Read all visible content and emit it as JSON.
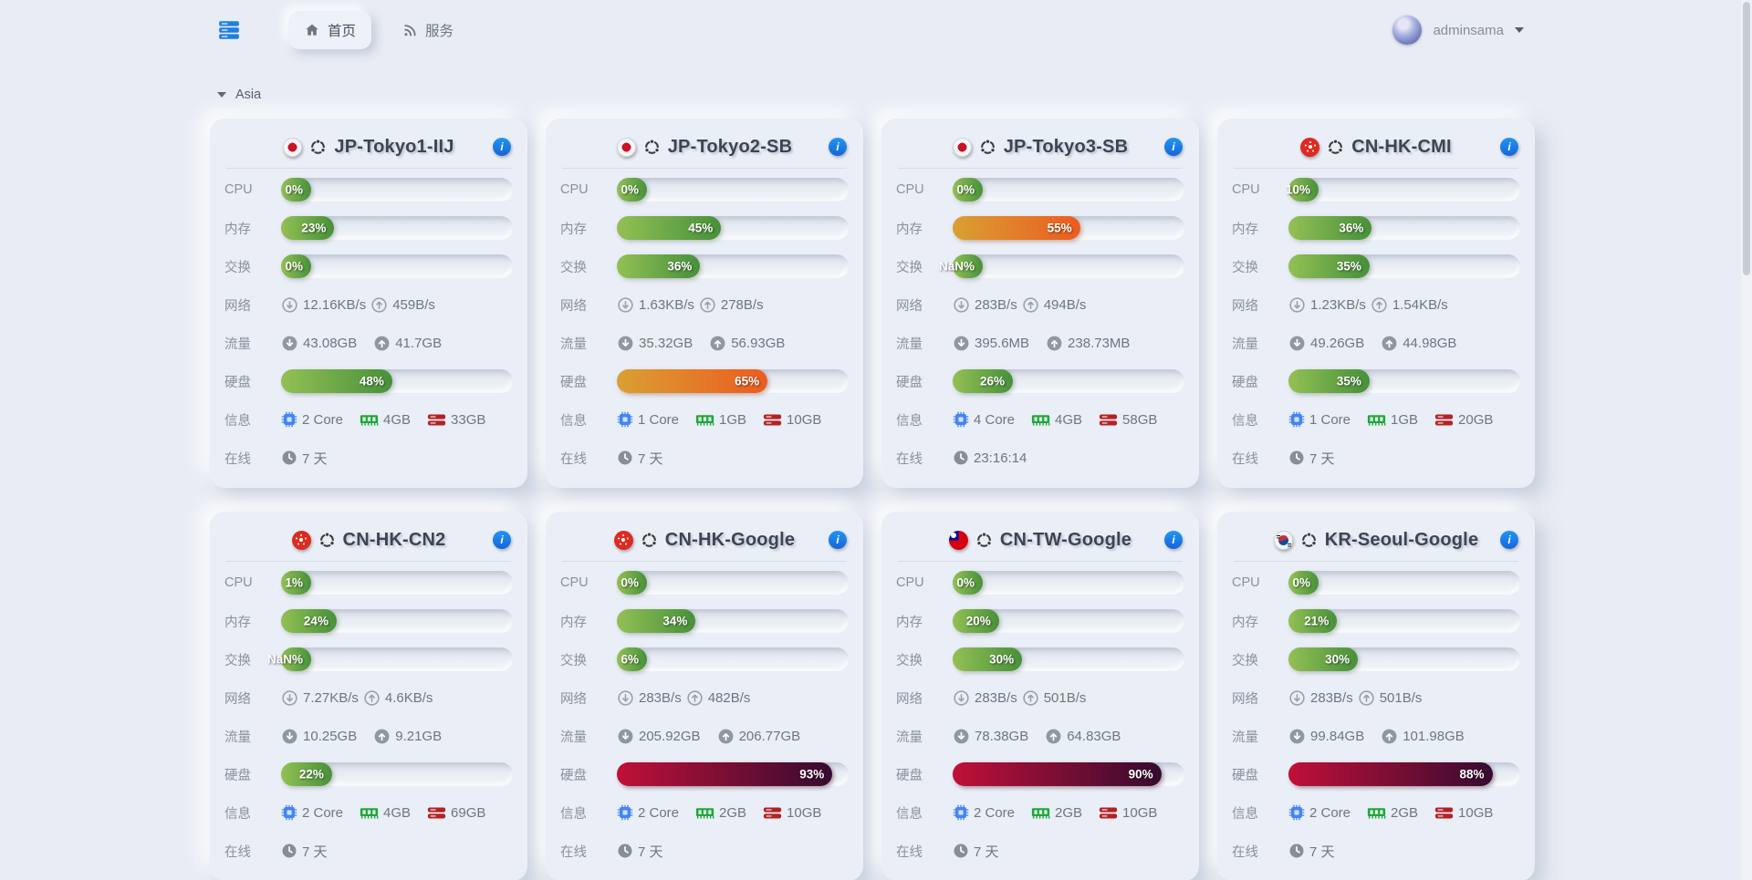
{
  "topbar": {
    "logo_icon": "server-stack-icon",
    "tabs": [
      {
        "label": "首页",
        "icon": "home-icon",
        "active": true
      },
      {
        "label": "服务",
        "icon": "rss-icon",
        "active": false
      }
    ],
    "user": {
      "name": "adminsama"
    }
  },
  "section": {
    "label": "Asia",
    "collapse_icon": "triangle-down"
  },
  "row_labels": {
    "cpu": "CPU",
    "mem": "内存",
    "swap": "交换",
    "net": "网络",
    "traffic": "流量",
    "disk": "硬盘",
    "info": "信息",
    "online": "在线"
  },
  "icons": {
    "info": "i"
  },
  "palette": {
    "page_bg": "#e8ecf4",
    "accent_blue": "#2196f3",
    "bar_green": [
      "#93c055",
      "#47903a"
    ],
    "bar_orange": [
      "#d9a033",
      "#ec5b20"
    ],
    "bar_red": [
      "#c01038",
      "#360b30"
    ]
  },
  "cards": [
    {
      "name": "JP-Tokyo1-IIJ",
      "flag": "jp",
      "os": "ubuntu",
      "cpu": {
        "label": "0%",
        "value": 0,
        "color": "green"
      },
      "mem": {
        "label": "23%",
        "value": 23,
        "color": "green"
      },
      "swap": {
        "label": "0%",
        "value": 0,
        "color": "green"
      },
      "net_down": "12.16KB/s",
      "net_up": "459B/s",
      "traffic_down": "43.08GB",
      "traffic_up": "41.7GB",
      "disk": {
        "label": "48%",
        "value": 48,
        "color": "green"
      },
      "info": {
        "cores": "2 Core",
        "ram": "4GB",
        "disk": "33GB"
      },
      "online": "7 天"
    },
    {
      "name": "JP-Tokyo2-SB",
      "flag": "jp",
      "os": "ubuntu",
      "cpu": {
        "label": "0%",
        "value": 0,
        "color": "green"
      },
      "mem": {
        "label": "45%",
        "value": 45,
        "color": "green"
      },
      "swap": {
        "label": "36%",
        "value": 36,
        "color": "green"
      },
      "net_down": "1.63KB/s",
      "net_up": "278B/s",
      "traffic_down": "35.32GB",
      "traffic_up": "56.93GB",
      "disk": {
        "label": "65%",
        "value": 65,
        "color": "orange"
      },
      "info": {
        "cores": "1 Core",
        "ram": "1GB",
        "disk": "10GB"
      },
      "online": "7 天"
    },
    {
      "name": "JP-Tokyo3-SB",
      "flag": "jp",
      "os": "ubuntu",
      "cpu": {
        "label": "0%",
        "value": 0,
        "color": "green"
      },
      "mem": {
        "label": "55%",
        "value": 55,
        "color": "orange"
      },
      "swap": {
        "label": "NaN%",
        "value": null,
        "color": "green"
      },
      "net_down": "283B/s",
      "net_up": "494B/s",
      "traffic_down": "395.6MB",
      "traffic_up": "238.73MB",
      "disk": {
        "label": "26%",
        "value": 26,
        "color": "green"
      },
      "info": {
        "cores": "4 Core",
        "ram": "4GB",
        "disk": "58GB"
      },
      "online": "23:16:14"
    },
    {
      "name": "CN-HK-CMI",
      "flag": "hk",
      "os": "ubuntu",
      "cpu": {
        "label": "10%",
        "value": 10,
        "color": "green"
      },
      "mem": {
        "label": "36%",
        "value": 36,
        "color": "green"
      },
      "swap": {
        "label": "35%",
        "value": 35,
        "color": "green"
      },
      "net_down": "1.23KB/s",
      "net_up": "1.54KB/s",
      "traffic_down": "49.26GB",
      "traffic_up": "44.98GB",
      "disk": {
        "label": "35%",
        "value": 35,
        "color": "green"
      },
      "info": {
        "cores": "1 Core",
        "ram": "1GB",
        "disk": "20GB"
      },
      "online": "7 天"
    },
    {
      "name": "CN-HK-CN2",
      "flag": "hk",
      "os": "ubuntu",
      "cpu": {
        "label": "1%",
        "value": 1,
        "color": "green"
      },
      "mem": {
        "label": "24%",
        "value": 24,
        "color": "green"
      },
      "swap": {
        "label": "NaN%",
        "value": null,
        "color": "green"
      },
      "net_down": "7.27KB/s",
      "net_up": "4.6KB/s",
      "traffic_down": "10.25GB",
      "traffic_up": "9.21GB",
      "disk": {
        "label": "22%",
        "value": 22,
        "color": "green"
      },
      "info": {
        "cores": "2 Core",
        "ram": "4GB",
        "disk": "69GB"
      },
      "online": "7 天"
    },
    {
      "name": "CN-HK-Google",
      "flag": "hk",
      "os": "ubuntu",
      "cpu": {
        "label": "0%",
        "value": 0,
        "color": "green"
      },
      "mem": {
        "label": "34%",
        "value": 34,
        "color": "green"
      },
      "swap": {
        "label": "6%",
        "value": 6,
        "color": "green"
      },
      "net_down": "283B/s",
      "net_up": "482B/s",
      "traffic_down": "205.92GB",
      "traffic_up": "206.77GB",
      "disk": {
        "label": "93%",
        "value": 93,
        "color": "red"
      },
      "info": {
        "cores": "2 Core",
        "ram": "2GB",
        "disk": "10GB"
      },
      "online": "7 天"
    },
    {
      "name": "CN-TW-Google",
      "flag": "tw",
      "os": "ubuntu",
      "cpu": {
        "label": "0%",
        "value": 0,
        "color": "green"
      },
      "mem": {
        "label": "20%",
        "value": 20,
        "color": "green"
      },
      "swap": {
        "label": "30%",
        "value": 30,
        "color": "green"
      },
      "net_down": "283B/s",
      "net_up": "501B/s",
      "traffic_down": "78.38GB",
      "traffic_up": "64.83GB",
      "disk": {
        "label": "90%",
        "value": 90,
        "color": "red"
      },
      "info": {
        "cores": "2 Core",
        "ram": "2GB",
        "disk": "10GB"
      },
      "online": "7 天"
    },
    {
      "name": "KR-Seoul-Google",
      "flag": "kr",
      "os": "ubuntu",
      "cpu": {
        "label": "0%",
        "value": 0,
        "color": "green"
      },
      "mem": {
        "label": "21%",
        "value": 21,
        "color": "green"
      },
      "swap": {
        "label": "30%",
        "value": 30,
        "color": "green"
      },
      "net_down": "283B/s",
      "net_up": "501B/s",
      "traffic_down": "99.84GB",
      "traffic_up": "101.98GB",
      "disk": {
        "label": "88%",
        "value": 88,
        "color": "red"
      },
      "info": {
        "cores": "2 Core",
        "ram": "2GB",
        "disk": "10GB"
      },
      "online": "7 天"
    }
  ]
}
